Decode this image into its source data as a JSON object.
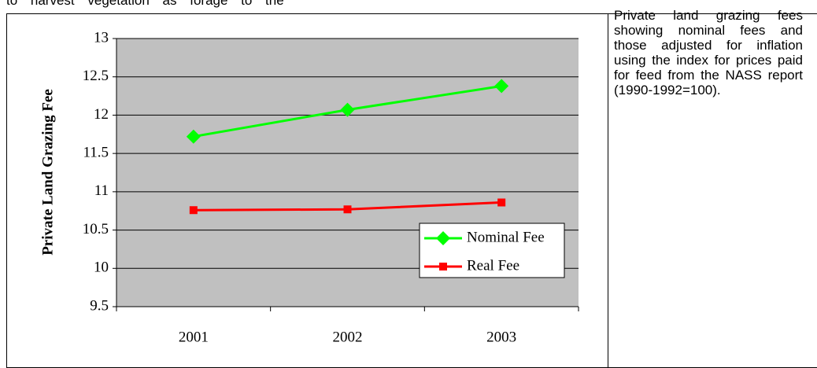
{
  "top_text": "to harvest vegetation as forage to the",
  "caption": "Private land grazing fees showing nominal fees and those adjusted for inflation using the index for prices paid for feed from the NASS report (1990-1992=100).",
  "chart_data": {
    "type": "line",
    "ylabel": "Private Land Grazing Fee",
    "categories": [
      "2001",
      "2002",
      "2003"
    ],
    "series": [
      {
        "name": "Nominal Fee",
        "color": "#00ff00",
        "marker": "diamond",
        "values": [
          11.72,
          12.07,
          12.38
        ]
      },
      {
        "name": "Real Fee",
        "color": "#ff0000",
        "marker": "square",
        "values": [
          10.76,
          10.77,
          10.86
        ]
      }
    ],
    "ylim": [
      9.5,
      13
    ],
    "yticks": [
      9.5,
      10,
      10.5,
      11,
      11.5,
      12,
      12.5,
      13
    ],
    "grid": true,
    "legend": "lower right",
    "plot_color": "#c0c0c0"
  }
}
